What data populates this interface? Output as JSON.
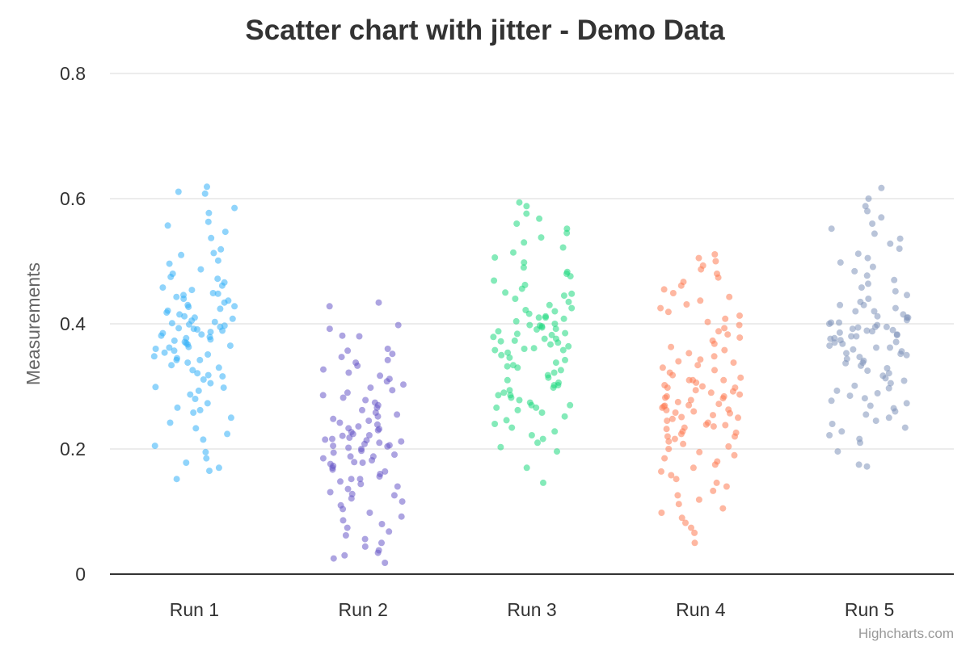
{
  "chart_data": {
    "type": "scatter",
    "title": "Scatter chart with jitter - Demo Data",
    "ylabel": "Measurements",
    "xlabel": "",
    "ylim": [
      0,
      0.8
    ],
    "y_ticks": [
      "0",
      "0.2",
      "0.4",
      "0.6",
      "0.8"
    ],
    "categories": [
      "Run 1",
      "Run 2",
      "Run 3",
      "Run 4",
      "Run 5"
    ],
    "grid": true,
    "legend": "none",
    "jitter": 0.24,
    "series": [
      {
        "color": "#35b0f7",
        "values": [
          0.619,
          0.611,
          0.608,
          0.585,
          0.577,
          0.563,
          0.557,
          0.547,
          0.537,
          0.519,
          0.513,
          0.51,
          0.501,
          0.496,
          0.487,
          0.48,
          0.475,
          0.472,
          0.466,
          0.461,
          0.458,
          0.454,
          0.449,
          0.446,
          0.443,
          0.44,
          0.437,
          0.434,
          0.43,
          0.427,
          0.424,
          0.421,
          0.418,
          0.415,
          0.412,
          0.41,
          0.408,
          0.405,
          0.403,
          0.401,
          0.399,
          0.397,
          0.395,
          0.393,
          0.391,
          0.389,
          0.387,
          0.385,
          0.383,
          0.381,
          0.379,
          0.377,
          0.375,
          0.373,
          0.371,
          0.369,
          0.367,
          0.365,
          0.363,
          0.36,
          0.357,
          0.354,
          0.351,
          0.348,
          0.345,
          0.342,
          0.338,
          0.334,
          0.33,
          0.326,
          0.321,
          0.316,
          0.311,
          0.305,
          0.299,
          0.293,
          0.287,
          0.28,
          0.273,
          0.266,
          0.258,
          0.25,
          0.242,
          0.233,
          0.224,
          0.215,
          0.205,
          0.195,
          0.185,
          0.178,
          0.17,
          0.165,
          0.152,
          0.448,
          0.428,
          0.392,
          0.362,
          0.342,
          0.318,
          0.298,
          0.262
        ]
      },
      {
        "color": "#6a5ac9",
        "values": [
          0.434,
          0.428,
          0.398,
          0.392,
          0.381,
          0.38,
          0.36,
          0.357,
          0.352,
          0.347,
          0.342,
          0.338,
          0.333,
          0.327,
          0.322,
          0.317,
          0.312,
          0.308,
          0.303,
          0.298,
          0.294,
          0.29,
          0.286,
          0.282,
          0.278,
          0.274,
          0.27,
          0.266,
          0.262,
          0.258,
          0.255,
          0.252,
          0.248,
          0.245,
          0.242,
          0.239,
          0.236,
          0.233,
          0.23,
          0.227,
          0.224,
          0.221,
          0.218,
          0.216,
          0.214,
          0.212,
          0.21,
          0.208,
          0.206,
          0.204,
          0.202,
          0.2,
          0.197,
          0.194,
          0.191,
          0.188,
          0.185,
          0.182,
          0.179,
          0.176,
          0.173,
          0.17,
          0.167,
          0.164,
          0.16,
          0.156,
          0.152,
          0.148,
          0.144,
          0.14,
          0.136,
          0.131,
          0.126,
          0.121,
          0.116,
          0.11,
          0.104,
          0.098,
          0.092,
          0.086,
          0.08,
          0.074,
          0.068,
          0.062,
          0.056,
          0.05,
          0.044,
          0.038,
          0.034,
          0.03,
          0.025,
          0.018,
          0.215,
          0.205,
          0.178,
          0.152,
          0.128,
          0.232,
          0.188,
          0.222
        ]
      },
      {
        "color": "#1fd97f",
        "values": [
          0.594,
          0.588,
          0.576,
          0.568,
          0.56,
          0.552,
          0.545,
          0.538,
          0.53,
          0.522,
          0.514,
          0.506,
          0.498,
          0.49,
          0.483,
          0.476,
          0.469,
          0.462,
          0.456,
          0.45,
          0.445,
          0.44,
          0.435,
          0.43,
          0.425,
          0.42,
          0.416,
          0.412,
          0.408,
          0.404,
          0.4,
          0.397,
          0.394,
          0.391,
          0.388,
          0.385,
          0.382,
          0.379,
          0.376,
          0.373,
          0.37,
          0.367,
          0.364,
          0.361,
          0.358,
          0.354,
          0.35,
          0.346,
          0.342,
          0.338,
          0.334,
          0.33,
          0.326,
          0.322,
          0.318,
          0.314,
          0.31,
          0.306,
          0.302,
          0.298,
          0.294,
          0.29,
          0.286,
          0.282,
          0.278,
          0.274,
          0.27,
          0.266,
          0.262,
          0.258,
          0.252,
          0.246,
          0.24,
          0.234,
          0.228,
          0.222,
          0.216,
          0.21,
          0.203,
          0.196,
          0.17,
          0.146,
          0.396,
          0.384,
          0.372,
          0.41,
          0.266,
          0.302,
          0.422,
          0.358,
          0.448,
          0.392,
          0.376,
          0.286,
          0.332,
          0.41,
          0.48,
          0.36,
          0.398,
          0.27
        ]
      },
      {
        "color": "#fd7b54",
        "values": [
          0.511,
          0.505,
          0.5,
          0.493,
          0.487,
          0.48,
          0.474,
          0.467,
          0.461,
          0.455,
          0.449,
          0.443,
          0.437,
          0.431,
          0.425,
          0.419,
          0.413,
          0.408,
          0.403,
          0.398,
          0.393,
          0.388,
          0.383,
          0.378,
          0.373,
          0.368,
          0.363,
          0.358,
          0.353,
          0.348,
          0.343,
          0.338,
          0.334,
          0.33,
          0.326,
          0.322,
          0.318,
          0.314,
          0.31,
          0.306,
          0.302,
          0.298,
          0.294,
          0.29,
          0.287,
          0.284,
          0.281,
          0.278,
          0.275,
          0.272,
          0.269,
          0.266,
          0.263,
          0.26,
          0.257,
          0.254,
          0.251,
          0.248,
          0.245,
          0.242,
          0.239,
          0.236,
          0.232,
          0.228,
          0.224,
          0.22,
          0.216,
          0.212,
          0.208,
          0.204,
          0.2,
          0.195,
          0.19,
          0.185,
          0.18,
          0.175,
          0.17,
          0.164,
          0.158,
          0.152,
          0.146,
          0.14,
          0.133,
          0.126,
          0.119,
          0.112,
          0.105,
          0.098,
          0.09,
          0.082,
          0.074,
          0.066,
          0.05,
          0.262,
          0.268,
          0.292,
          0.284,
          0.3,
          0.226,
          0.238,
          0.258,
          0.282,
          0.34,
          0.22,
          0.31,
          0.27,
          0.25,
          0.234,
          0.298,
          0.31
        ]
      },
      {
        "color": "#8094ba",
        "values": [
          0.617,
          0.6,
          0.588,
          0.58,
          0.57,
          0.56,
          0.552,
          0.544,
          0.536,
          0.528,
          0.52,
          0.512,
          0.505,
          0.498,
          0.491,
          0.484,
          0.477,
          0.47,
          0.464,
          0.458,
          0.452,
          0.446,
          0.44,
          0.435,
          0.43,
          0.425,
          0.42,
          0.415,
          0.41,
          0.406,
          0.402,
          0.398,
          0.395,
          0.392,
          0.389,
          0.386,
          0.383,
          0.38,
          0.377,
          0.374,
          0.371,
          0.368,
          0.365,
          0.362,
          0.359,
          0.356,
          0.353,
          0.35,
          0.347,
          0.344,
          0.341,
          0.337,
          0.333,
          0.329,
          0.325,
          0.321,
          0.317,
          0.313,
          0.309,
          0.305,
          0.301,
          0.297,
          0.293,
          0.289,
          0.285,
          0.281,
          0.277,
          0.273,
          0.269,
          0.265,
          0.26,
          0.255,
          0.25,
          0.245,
          0.24,
          0.234,
          0.228,
          0.222,
          0.216,
          0.21,
          0.196,
          0.175,
          0.172,
          0.395,
          0.39,
          0.388,
          0.4,
          0.382,
          0.376,
          0.412,
          0.402,
          0.394,
          0.38,
          0.37,
          0.43,
          0.42,
          0.41,
          0.362,
          0.352,
          0.338
        ]
      }
    ]
  },
  "credit": "Highcharts.com"
}
